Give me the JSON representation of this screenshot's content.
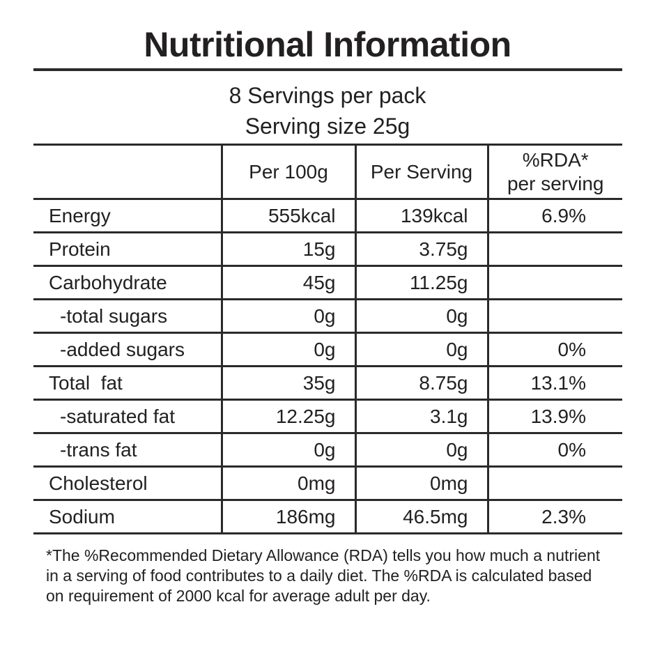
{
  "title": "Nutritional Information",
  "subtitle": {
    "servings_per_pack": "8 Servings per pack",
    "serving_size": "Serving size 25g"
  },
  "table": {
    "headers": {
      "label": "",
      "per100g": "Per 100g",
      "perServing": "Per Serving",
      "rdaLine1": "%RDA*",
      "rdaLine2": "per serving"
    },
    "rows": [
      {
        "label": "Energy",
        "per100g": "555kcal",
        "perServing": "139kcal",
        "rda": "6.9%"
      },
      {
        "label": "Protein",
        "per100g": "15g",
        "perServing": "3.75g",
        "rda": ""
      },
      {
        "label": "Carbohydrate",
        "per100g": "45g",
        "perServing": "11.25g",
        "rda": ""
      },
      {
        "label": "-total sugars",
        "per100g": "0g",
        "perServing": "0g",
        "rda": ""
      },
      {
        "label": "-added sugars",
        "per100g": "0g",
        "perServing": "0g",
        "rda": "0%"
      },
      {
        "label": "Total  fat",
        "per100g": "35g",
        "perServing": "8.75g",
        "rda": "13.1%"
      },
      {
        "label": "-saturated fat",
        "per100g": "12.25g",
        "perServing": "3.1g",
        "rda": "13.9%"
      },
      {
        "label": "-trans fat",
        "per100g": "0g",
        "perServing": "0g",
        "rda": "0%"
      },
      {
        "label": "Cholesterol",
        "per100g": "0mg",
        "perServing": "0mg",
        "rda": ""
      },
      {
        "label": "Sodium",
        "per100g": "186mg",
        "perServing": "46.5mg",
        "rda": "2.3%"
      }
    ]
  },
  "footnote": {
    "line1": "*The %Recommended Dietary Allowance (RDA) tells you how much a nutrient",
    "line2": "in a serving of food contributes to a daily diet. The %RDA is calculated based",
    "line3": "on requirement of 2000 kcal for average adult per day."
  },
  "colors": {
    "background": "#ffffff",
    "text": "#232021",
    "rule": "#2b292a"
  }
}
